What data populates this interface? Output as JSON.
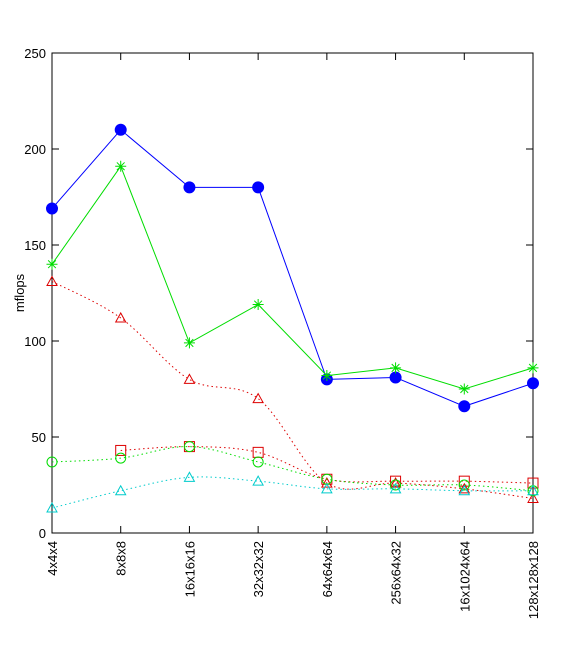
{
  "chart_data": {
    "type": "line",
    "title": "",
    "xlabel": "",
    "ylabel": "mflops",
    "ylim": [
      0,
      250
    ],
    "yticks": [
      0,
      50,
      100,
      150,
      200,
      250
    ],
    "grid": false,
    "categories": [
      "4x4x4",
      "8x8x8",
      "16x16x16",
      "32x32x32",
      "64x64x64",
      "256x64x32",
      "16x1024x64",
      "128x128x128"
    ],
    "series": [
      {
        "color": "#0000ff",
        "line": "solid",
        "marker": "filled-circle",
        "values": [
          169,
          210,
          180,
          180,
          80,
          81,
          66,
          78
        ]
      },
      {
        "color": "#00dd00",
        "line": "solid",
        "marker": "star",
        "values": [
          140,
          191,
          99,
          119,
          82,
          86,
          75,
          86
        ]
      },
      {
        "color": "#dd0000",
        "line": "dotted",
        "marker": "triangle",
        "values": [
          131,
          112,
          80,
          70,
          26,
          26,
          23,
          18
        ]
      },
      {
        "color": "#dd0000",
        "line": "dotted",
        "marker": "square",
        "values": [
          null,
          43,
          45,
          42,
          28,
          27,
          27,
          26
        ]
      },
      {
        "color": "#00dd00",
        "line": "dotted",
        "marker": "circle",
        "values": [
          37,
          39,
          45,
          37,
          28,
          25,
          25,
          22
        ]
      },
      {
        "color": "#00cccc",
        "line": "dotted",
        "marker": "triangle",
        "values": [
          13,
          22,
          29,
          27,
          23,
          23,
          22,
          22
        ]
      }
    ]
  }
}
